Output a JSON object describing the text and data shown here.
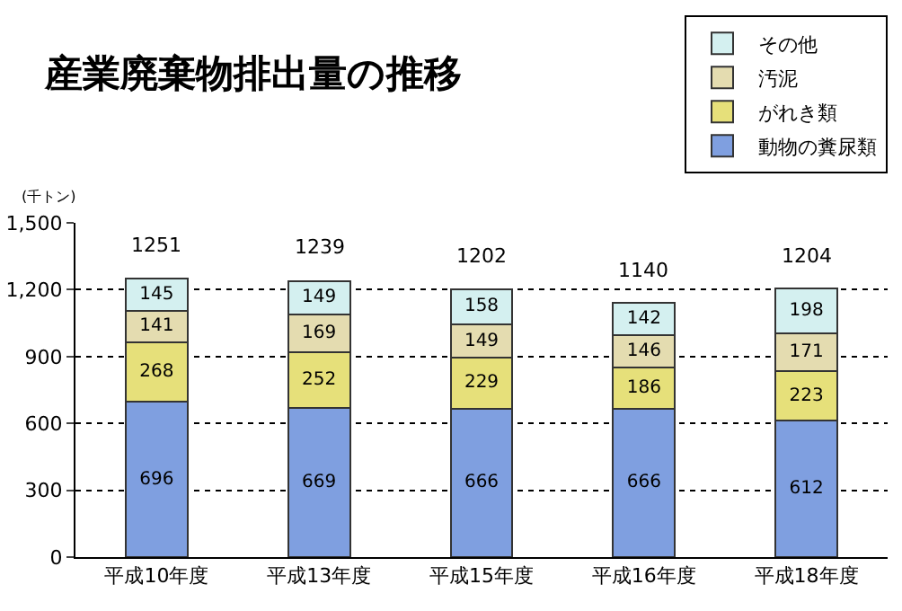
{
  "chart_data": {
    "type": "bar",
    "title": "産業廃棄物排出量の推移",
    "ylabel": "(千トン)",
    "categories": [
      "平成10年度",
      "平成13年度",
      "平成15年度",
      "平成16年度",
      "平成18年度"
    ],
    "stacked": true,
    "data_labels": true,
    "grid": "y",
    "legend": "top right",
    "ylim": [
      0,
      1500
    ],
    "yticks": [
      0,
      300,
      600,
      900,
      {
        "value": 1200,
        "label": "1,200"
      },
      {
        "value": 1500,
        "label": "1,500"
      }
    ],
    "series": [
      {
        "name": "動物の糞尿類",
        "color": "#7f9fe0",
        "values": [
          696,
          669,
          666,
          666,
          612
        ]
      },
      {
        "name": "がれき類",
        "color": "#e6e07a",
        "values": [
          268,
          252,
          229,
          186,
          223
        ]
      },
      {
        "name": "汚泥",
        "color": "#e4dcb0",
        "values": [
          141,
          169,
          149,
          146,
          171
        ]
      },
      {
        "name": "その他",
        "color": "#d4f0f0",
        "values": [
          145,
          149,
          158,
          142,
          198
        ]
      }
    ],
    "totals": [
      "1251",
      "1239",
      "1202",
      "1140",
      "1204"
    ]
  }
}
